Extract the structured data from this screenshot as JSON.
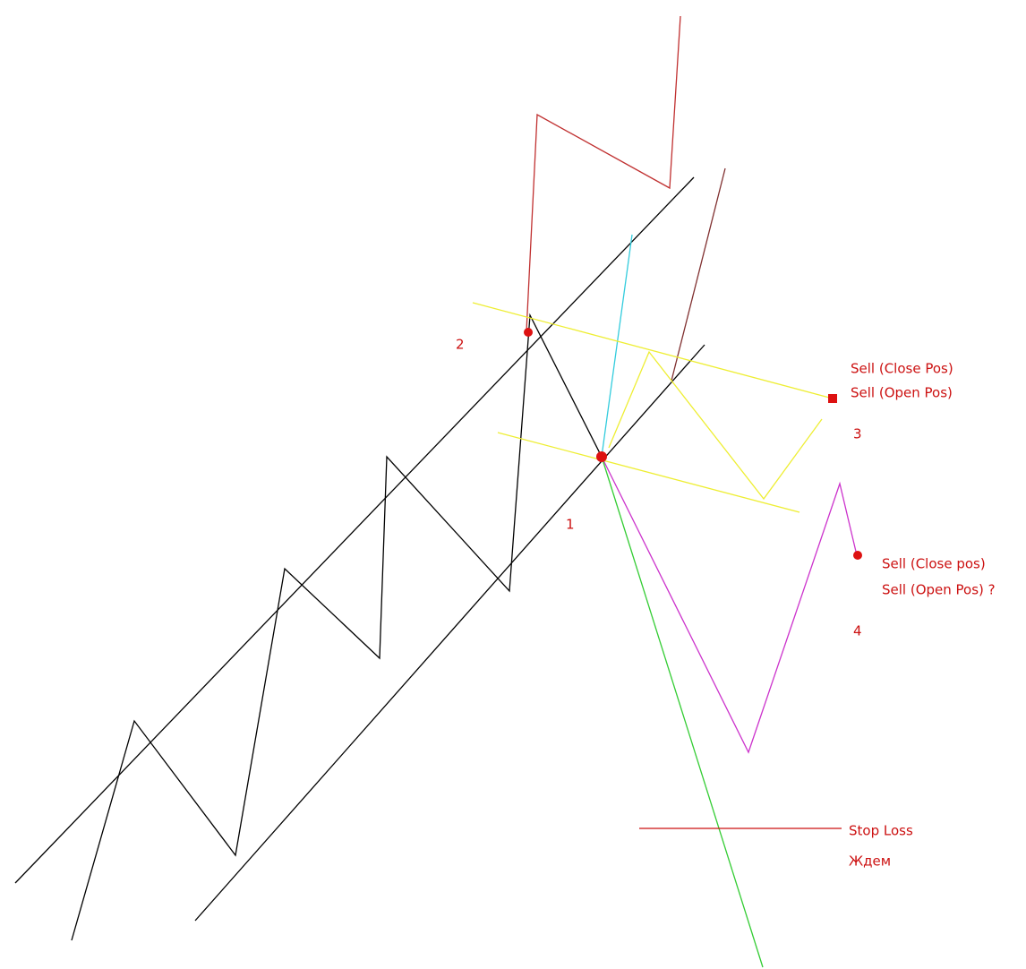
{
  "points": {
    "p1": "1",
    "p2": "2",
    "p3": "3",
    "p4": "4"
  },
  "annotations": {
    "signal_3": [
      "Sell (Close Pos)",
      "Sell (Open Pos)"
    ],
    "signal_4": [
      "Sell (Close pos)",
      "Sell (Open Pos) ?"
    ],
    "stop_loss": "Stop Loss",
    "wait": "Ждем"
  }
}
